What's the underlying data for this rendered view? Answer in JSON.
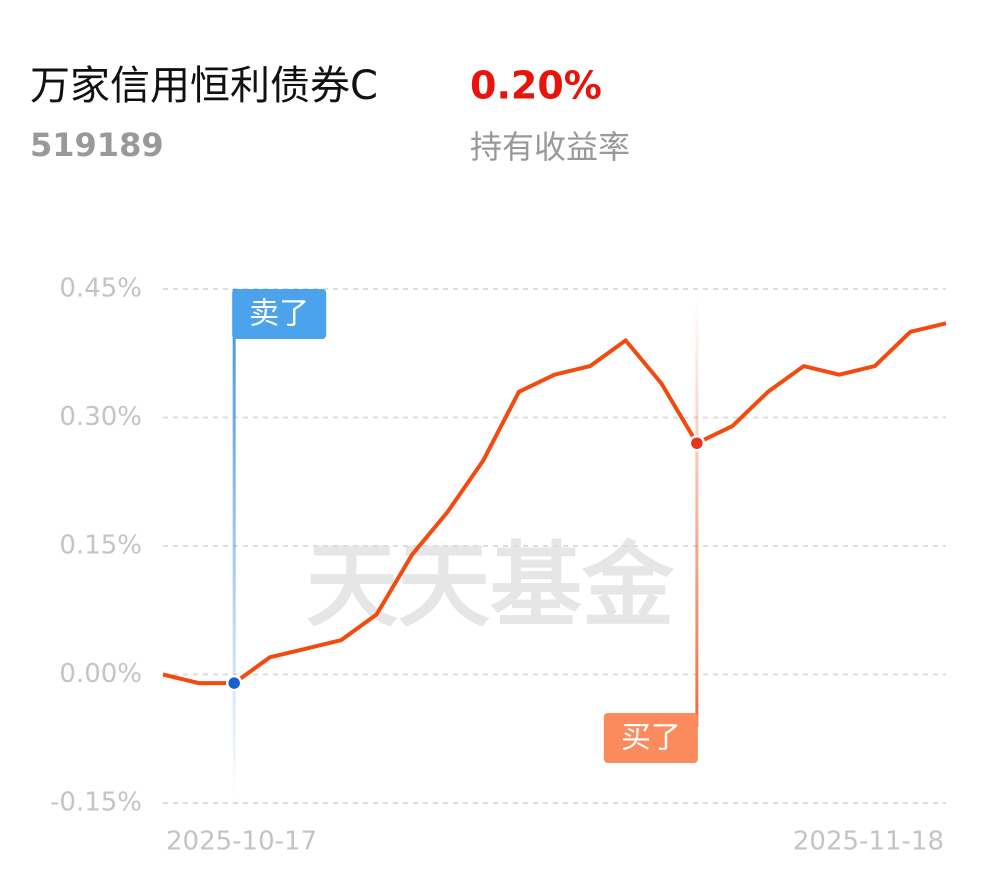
{
  "header": {
    "title": "万家信用恒利债券C",
    "code": "519189",
    "return_value": "0.20%",
    "return_label": "持有收益率"
  },
  "chart_data": {
    "type": "line",
    "watermark": "天天基金",
    "categories": [
      "2025-10-17",
      null,
      null,
      null,
      null,
      null,
      null,
      null,
      null,
      null,
      null,
      null,
      null,
      null,
      null,
      null,
      null,
      null,
      null,
      null,
      null,
      null,
      "2025-11-18"
    ],
    "series": [
      {
        "color": "#f24a0f",
        "values": [
          0,
          -0.01,
          -0.01,
          0.02,
          0.03,
          0.04,
          0.07,
          0.14,
          0.19,
          0.25,
          0.33,
          0.35,
          0.36,
          0.39,
          0.34,
          0.27,
          0.29,
          0.33,
          0.36,
          0.35,
          0.36,
          0.4,
          0.41
        ]
      }
    ],
    "ylim": [
      -0.15,
      0.45
    ],
    "yticks": [
      {
        "value": -0.15,
        "label": "-0.15%"
      },
      {
        "value": 0,
        "label": "0.00%"
      },
      {
        "value": 0.15,
        "label": "0.15%"
      },
      {
        "value": 0.3,
        "label": "0.30%"
      },
      {
        "value": 0.45,
        "label": "0.45%"
      }
    ],
    "grid": true,
    "annotations": [
      {
        "text": "卖了",
        "category_index": 2,
        "color": "#4aa3ec",
        "dot_color": "#1a5fc8"
      },
      {
        "text": "买了",
        "category_index": 15,
        "color": "#fb8a5c",
        "dot_color": "#e8321e"
      }
    ]
  }
}
